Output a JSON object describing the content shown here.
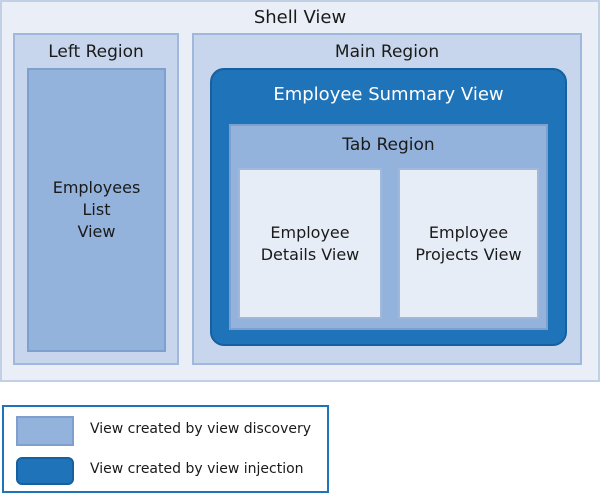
{
  "diagram": {
    "shell_view": "Shell View",
    "left_region": "Left Region",
    "employees_list_view_line1": "Employees List",
    "employees_list_view_line2": "View",
    "main_region": "Main Region",
    "employee_summary_view": "Employee Summary View",
    "tab_region": "Tab Region",
    "employee_details_view_line1": "Employee",
    "employee_details_view_line2": "Details View",
    "employee_projects_view_line1": "Employee",
    "employee_projects_view_line2": "Projects View"
  },
  "legend": {
    "discovery_label": "View created by view discovery",
    "injection_label": "View created by view injection"
  },
  "colors": {
    "discovery": "#93b2dc",
    "injection": "#1f73b8",
    "region": "#c7d6ec",
    "shell": "#e9eef7"
  }
}
